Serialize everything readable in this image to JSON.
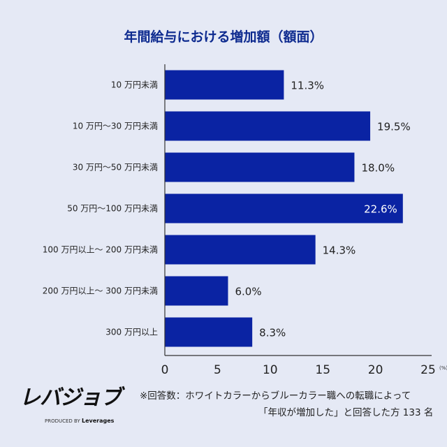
{
  "chart_data": {
    "type": "bar",
    "orientation": "horizontal",
    "title": "年間給与における増加額（額面）",
    "categories": [
      "10 万円未満",
      "10 万円〜30 万円未満",
      "30 万円〜50 万円未満",
      "50 万円〜100 万円未満",
      "100 万円以上〜 200 万円未満",
      "200 万円以上〜 300 万円未満",
      "300 万円以上"
    ],
    "values": [
      11.3,
      19.5,
      18.0,
      22.6,
      14.3,
      6.0,
      8.3
    ],
    "data_labels": [
      "11.3%",
      "19.5%",
      "18.0%",
      "22.6%",
      "14.3%",
      "6.0%",
      "8.3%"
    ],
    "xlim": [
      0,
      25
    ],
    "xticks": [
      "0",
      "5",
      "10",
      "15",
      "20",
      "25"
    ],
    "xunit": "(%)",
    "grid": false,
    "bar_color": "#0a23a3",
    "title_color": "#0d2a8f"
  },
  "footer": {
    "logo": "レバジョブ",
    "produced_by": "PRODUCED BY",
    "brand": "Leverages",
    "note_line1": "※回答数：ホワイトカラーからブルーカラー職への転職によって",
    "note_line2": "「年収が増加した」と回答した方 133 名"
  }
}
